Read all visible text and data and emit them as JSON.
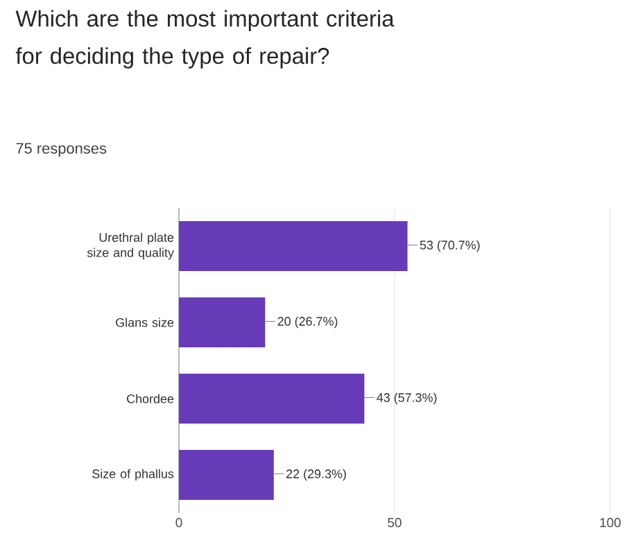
{
  "chart_data": {
    "type": "bar",
    "orientation": "horizontal",
    "title": "Which are the most important criteria for deciding the type of repair?",
    "subtitle": "75 responses",
    "categories": [
      "Urethral plate size and quality",
      "Glans size",
      "Chordee",
      "Size of phallus"
    ],
    "values": [
      53,
      20,
      43,
      22
    ],
    "value_labels": [
      "53 (70.7%)",
      "20 (26.7%)",
      "43 (57.3%)",
      "22 (29.3%)"
    ],
    "color": "#673ab7",
    "xlim": [
      0,
      100
    ],
    "xticks": [
      0,
      50,
      100
    ],
    "grid": "x"
  }
}
